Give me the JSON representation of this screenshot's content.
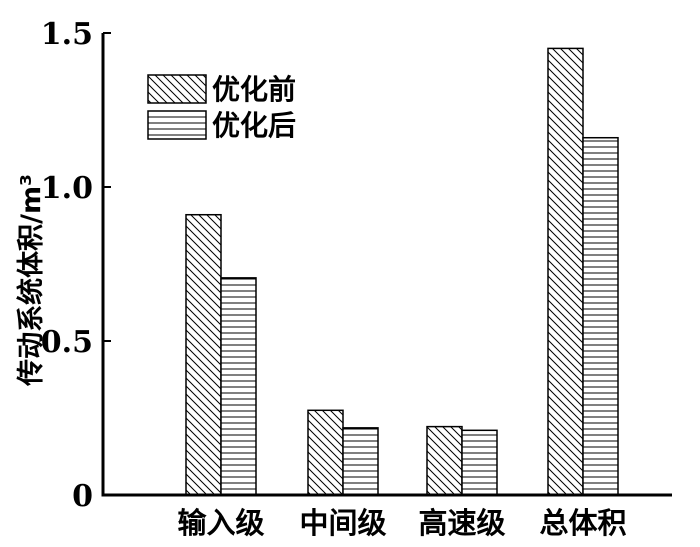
{
  "chart_data": {
    "type": "bar",
    "categories": [
      "输入级",
      "中间级",
      "高速级",
      "总体积"
    ],
    "series": [
      {
        "name": "优化前",
        "values": [
          0.91,
          0.275,
          0.222,
          1.45
        ],
        "pattern": "diagonal"
      },
      {
        "name": "优化后",
        "values": [
          0.705,
          0.218,
          0.21,
          1.16
        ],
        "pattern": "horizontal"
      }
    ],
    "ylabel": "传动系统体积/m³",
    "ylim": [
      0,
      1.5
    ],
    "yticks": [
      "0",
      "0.5",
      "1.0",
      "1.5"
    ],
    "ytick_values": [
      0,
      0.5,
      1.0,
      1.5
    ],
    "grid": false,
    "legend_position": "top-left",
    "bar_fill": "#ffffff",
    "line_color": "#000000"
  }
}
